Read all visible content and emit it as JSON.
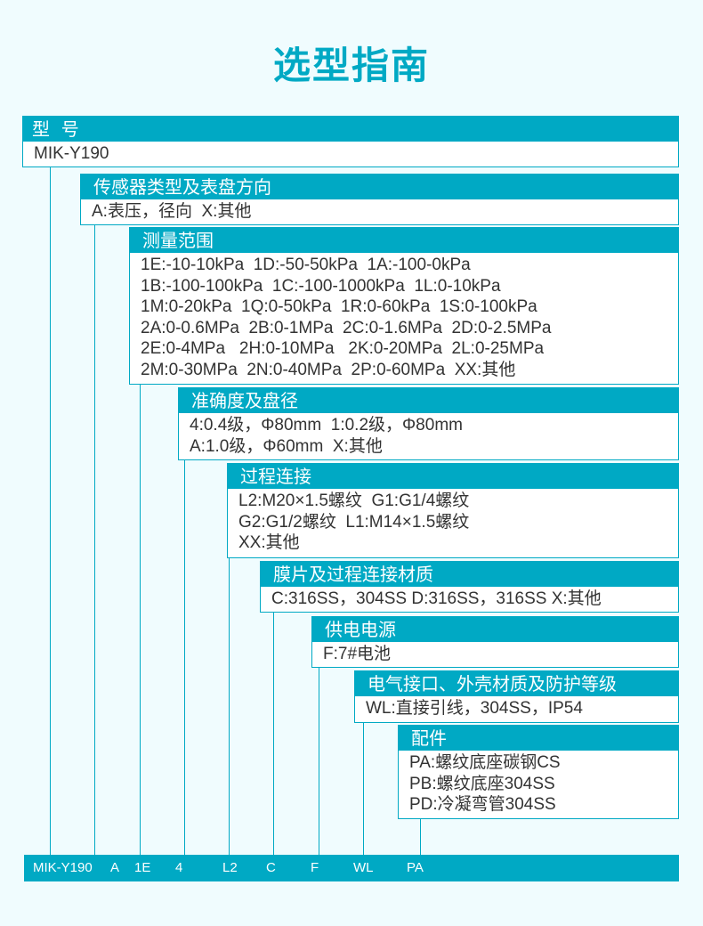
{
  "title": "选型指南",
  "accent_color": "#00a9c4",
  "sections": [
    {
      "header": "型  号",
      "lines": [
        "MIK-Y190"
      ]
    },
    {
      "header": "传感器类型及表盘方向",
      "lines": [
        "A:表压，径向  X:其他"
      ]
    },
    {
      "header": "测量范围",
      "lines": [
        "1E:-10-10kPa  1D:-50-50kPa  1A:-100-0kPa",
        "1B:-100-100kPa  1C:-100-1000kPa  1L:0-10kPa",
        "1M:0-20kPa  1Q:0-50kPa  1R:0-60kPa  1S:0-100kPa",
        "2A:0-0.6MPa  2B:0-1MPa  2C:0-1.6MPa  2D:0-2.5MPa",
        "2E:0-4MPa   2H:0-10MPa   2K:0-20MPa  2L:0-25MPa",
        "2M:0-30MPa  2N:0-40MPa  2P:0-60MPa  XX:其他"
      ]
    },
    {
      "header": "准确度及盘径",
      "lines": [
        "4:0.4级，Φ80mm  1:0.2级，Φ80mm",
        "A:1.0级，Φ60mm  X:其他"
      ]
    },
    {
      "header": "过程连接",
      "lines": [
        "L2:M20×1.5螺纹  G1:G1/4螺纹",
        "G2:G1/2螺纹  L1:M14×1.5螺纹",
        "XX:其他"
      ]
    },
    {
      "header": "膜片及过程连接材质",
      "lines": [
        "C:316SS，304SS D:316SS，316SS X:其他"
      ]
    },
    {
      "header": "供电电源",
      "lines": [
        "F:7#电池"
      ]
    },
    {
      "header": "电气接口、外壳材质及防护等级",
      "lines": [
        "WL:直接引线，304SS，IP54"
      ]
    },
    {
      "header": "配件",
      "lines": [
        "PA:螺纹底座碳钢CS",
        "PB:螺纹底座304SS",
        "PD:冷凝弯管304SS"
      ]
    }
  ],
  "example_code": [
    "MIK-Y190",
    "A",
    "1E",
    "4",
    "L2",
    "C",
    "F",
    "WL",
    "PA"
  ]
}
